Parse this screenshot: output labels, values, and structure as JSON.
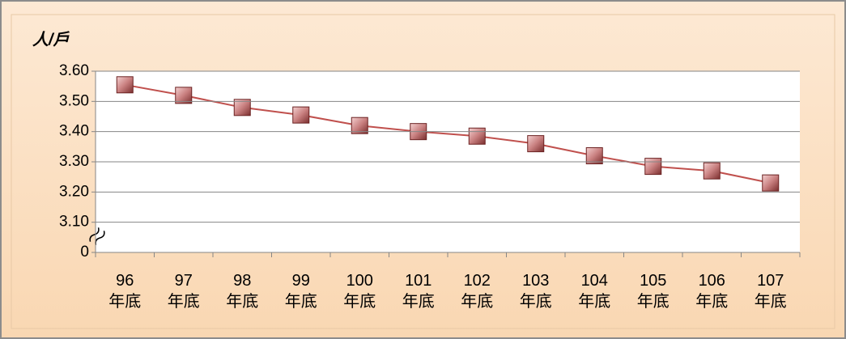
{
  "chart_data": {
    "type": "line",
    "y_label": "人/戶",
    "categories": [
      "96\n年底",
      "97\n年底",
      "98\n年底",
      "99\n年底",
      "100\n年底",
      "101\n年底",
      "102\n年底",
      "103\n年底",
      "104\n年底",
      "105\n年底",
      "106\n年底",
      "107\n年底"
    ],
    "series": [
      {
        "name": "人/戶",
        "color": "#c0504d",
        "values": [
          3.555,
          3.52,
          3.48,
          3.455,
          3.42,
          3.4,
          3.385,
          3.36,
          3.32,
          3.285,
          3.27,
          3.23
        ]
      }
    ],
    "ylim": [
      0,
      3.6
    ],
    "y_break": [
      0,
      3.0
    ],
    "yticks": [
      0,
      {
        "value": 3.1,
        "label": "3.10"
      },
      {
        "value": 3.2,
        "label": "3.20"
      },
      {
        "value": 3.3,
        "label": "3.30"
      },
      {
        "value": 3.4,
        "label": "3.40"
      },
      {
        "value": 3.5,
        "label": "3.50"
      },
      {
        "value": 3.6,
        "label": "3.60"
      }
    ],
    "grid": true
  }
}
